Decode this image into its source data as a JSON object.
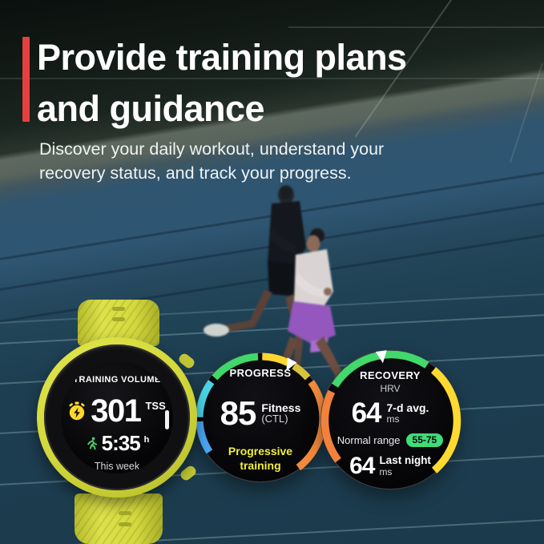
{
  "colors": {
    "accent_red": "#e5403f",
    "watch_yellow": "#d3d83a",
    "status_yellow_text": "#f0ee3e",
    "pill_green": "#3fdc78"
  },
  "header": {
    "title": "Provide training plans\nand guidance",
    "subtitle": "Discover your daily workout, understand your\nrecovery status, and track your progress."
  },
  "training_widget": {
    "title": "TRAINING VOLUME",
    "tss_icon": "stopwatch-energy-icon",
    "tss_value": "301",
    "tss_unit": "TSS",
    "duration_icon": "runner-icon",
    "duration_value": "5:35",
    "duration_unit": "h",
    "period": "This week"
  },
  "progress_widget": {
    "title": "PROGRESS",
    "value": "85",
    "metric": "Fitness",
    "metric_sub": "(CTL)",
    "status": "Progressive\ntraining",
    "ring": {
      "pointer_angle": 28,
      "segments": [
        {
          "from": 237,
          "to": 267,
          "color": "#4aa5f2"
        },
        {
          "from": 271,
          "to": 306,
          "color": "#49d4e4"
        },
        {
          "from": 311,
          "to": 357,
          "color": "#3fd96b"
        },
        {
          "from": 1,
          "to": 26,
          "color": "#ffd630"
        },
        {
          "from": 32,
          "to": 49,
          "color": "#d9c33b"
        },
        {
          "from": 54,
          "to": 143,
          "color": "#f2893c"
        }
      ]
    }
  },
  "recovery_widget": {
    "title": "RECOVERY",
    "subtitle": "HRV",
    "avg_value": "64",
    "avg_label": "7-d avg.",
    "avg_unit": "ms",
    "range_label": "Normal range",
    "range_value": "55-75",
    "night_value": "64",
    "night_label": "Last night",
    "night_unit": "ms",
    "ring": {
      "pointer_angle": 352,
      "segments": [
        {
          "from": 233,
          "to": 296,
          "color": "#f2813c"
        },
        {
          "from": 302,
          "to": 33,
          "color": "#41d96b"
        },
        {
          "from": 40,
          "to": 139,
          "color": "#ffd930"
        }
      ]
    }
  }
}
